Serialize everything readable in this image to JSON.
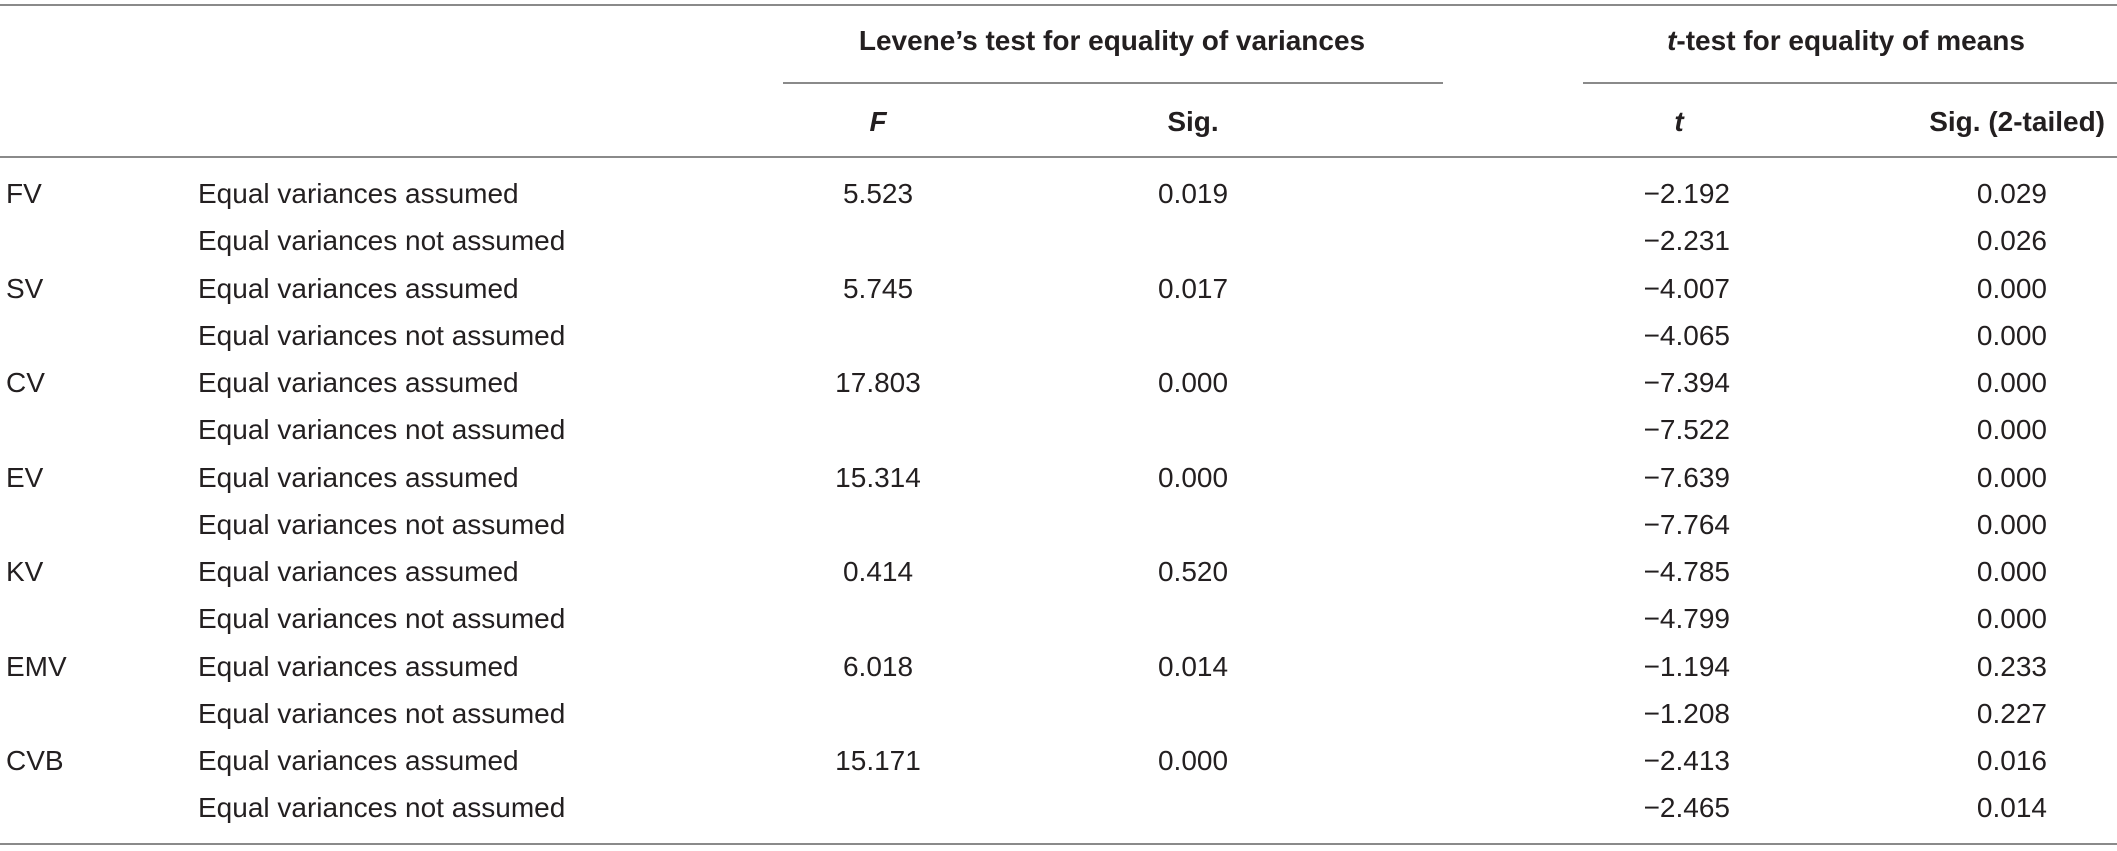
{
  "header": {
    "levene_group": "Levene’s test for equality of variances",
    "ttest_group_italic": "t",
    "ttest_group_rest": "-test for equality of means",
    "col_F": "F",
    "col_sig": "Sig.",
    "col_t": "t",
    "col_sig2": "Sig. (2-tailed)"
  },
  "rows": [
    {
      "var": "FV",
      "label": "Equal variances assumed",
      "F": "5.523",
      "sig": "0.019",
      "t": "−2.192",
      "sig2": "0.029"
    },
    {
      "var": "",
      "label": "Equal variances not assumed",
      "F": "",
      "sig": "",
      "t": "−2.231",
      "sig2": "0.026"
    },
    {
      "var": "SV",
      "label": "Equal variances assumed",
      "F": "5.745",
      "sig": "0.017",
      "t": "−4.007",
      "sig2": "0.000"
    },
    {
      "var": "",
      "label": "Equal variances not assumed",
      "F": "",
      "sig": "",
      "t": "−4.065",
      "sig2": "0.000"
    },
    {
      "var": "CV",
      "label": "Equal variances assumed",
      "F": "17.803",
      "sig": "0.000",
      "t": "−7.394",
      "sig2": "0.000"
    },
    {
      "var": "",
      "label": "Equal variances not assumed",
      "F": "",
      "sig": "",
      "t": "−7.522",
      "sig2": "0.000"
    },
    {
      "var": "EV",
      "label": "Equal variances assumed",
      "F": "15.314",
      "sig": "0.000",
      "t": "−7.639",
      "sig2": "0.000"
    },
    {
      "var": "",
      "label": "Equal variances not assumed",
      "F": "",
      "sig": "",
      "t": "−7.764",
      "sig2": "0.000"
    },
    {
      "var": "KV",
      "label": "Equal variances assumed",
      "F": "0.414",
      "sig": "0.520",
      "t": "−4.785",
      "sig2": "0.000"
    },
    {
      "var": "",
      "label": "Equal variances not assumed",
      "F": "",
      "sig": "",
      "t": "−4.799",
      "sig2": "0.000"
    },
    {
      "var": "EMV",
      "label": "Equal variances assumed",
      "F": "6.018",
      "sig": "0.014",
      "t": "−1.194",
      "sig2": "0.233"
    },
    {
      "var": "",
      "label": "Equal variances not assumed",
      "F": "",
      "sig": "",
      "t": "−1.208",
      "sig2": "0.227"
    },
    {
      "var": "CVB",
      "label": "Equal variances assumed",
      "F": "15.171",
      "sig": "0.000",
      "t": "−2.413",
      "sig2": "0.016"
    },
    {
      "var": "",
      "label": "Equal variances not assumed",
      "F": "",
      "sig": "",
      "t": "−2.465",
      "sig2": "0.014"
    }
  ]
}
